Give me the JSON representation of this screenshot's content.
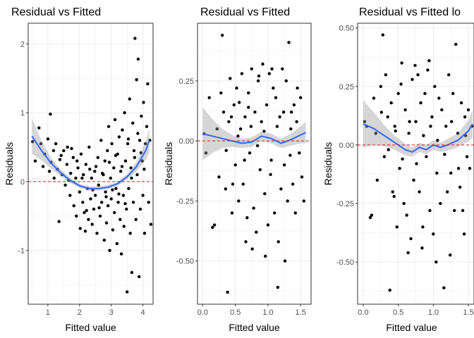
{
  "chart_data": [
    {
      "type": "scatter",
      "title": "Residual vs Fitted",
      "xlabel": "Fitted value",
      "ylabel": "Residuals",
      "xlim": [
        0.38,
        4.32
      ],
      "ylim": [
        -1.78,
        2.3
      ],
      "xticks": [
        1,
        2,
        3,
        4
      ],
      "yticks": [
        -1,
        0,
        1,
        2
      ],
      "grid": true,
      "reference_line": {
        "y": 0,
        "color": "#e41a1c",
        "style": "dashed"
      },
      "smooth": {
        "color": "#3366ff",
        "x": [
          0.5,
          0.8,
          1.1,
          1.4,
          1.7,
          2.0,
          2.3,
          2.6,
          2.9,
          3.2,
          3.5,
          3.8,
          4.1,
          4.2
        ],
        "y": [
          0.66,
          0.45,
          0.27,
          0.13,
          0.02,
          -0.06,
          -0.1,
          -0.1,
          -0.08,
          -0.03,
          0.07,
          0.22,
          0.46,
          0.6
        ],
        "band": [
          0.26,
          0.14,
          0.08,
          0.05,
          0.04,
          0.03,
          0.03,
          0.03,
          0.03,
          0.03,
          0.04,
          0.07,
          0.14,
          0.18
        ]
      },
      "points": [
        [
          0.52,
          0.58
        ],
        [
          0.6,
          0.3
        ],
        [
          0.72,
          0.78
        ],
        [
          0.78,
          0.55
        ],
        [
          0.85,
          0.22
        ],
        [
          0.9,
          0.4
        ],
        [
          1.0,
          0.62
        ],
        [
          1.05,
          0.15
        ],
        [
          1.08,
          0.98
        ],
        [
          1.1,
          0.28
        ],
        [
          1.18,
          0.45
        ],
        [
          1.2,
          0.05
        ],
        [
          1.25,
          0.55
        ],
        [
          1.3,
          0.18
        ],
        [
          1.35,
          -0.58
        ],
        [
          1.38,
          0.32
        ],
        [
          1.45,
          0.1
        ],
        [
          1.5,
          0.45
        ],
        [
          1.55,
          -0.05
        ],
        [
          1.6,
          0.25
        ],
        [
          1.62,
          0.5
        ],
        [
          1.7,
          -0.2
        ],
        [
          1.72,
          0.12
        ],
        [
          1.8,
          0.35
        ],
        [
          1.82,
          -0.35
        ],
        [
          1.88,
          0.05
        ],
        [
          1.9,
          -0.5
        ],
        [
          1.95,
          0.2
        ],
        [
          2.0,
          -0.15
        ],
        [
          2.02,
          -0.68
        ],
        [
          2.05,
          0.4
        ],
        [
          2.1,
          -0.3
        ],
        [
          2.12,
          0.1
        ],
        [
          2.15,
          -0.45
        ],
        [
          2.18,
          -0.72
        ],
        [
          2.2,
          0.25
        ],
        [
          2.25,
          -0.1
        ],
        [
          2.28,
          -0.55
        ],
        [
          2.3,
          0.5
        ],
        [
          2.35,
          -0.25
        ],
        [
          2.38,
          0.05
        ],
        [
          2.4,
          -0.62
        ],
        [
          2.45,
          -0.4
        ],
        [
          2.48,
          0.15
        ],
        [
          2.5,
          -0.2
        ],
        [
          2.55,
          -0.75
        ],
        [
          2.58,
          0.35
        ],
        [
          2.6,
          -0.05
        ],
        [
          2.65,
          -0.5
        ],
        [
          2.68,
          0.6
        ],
        [
          2.7,
          -0.3
        ],
        [
          2.75,
          0.1
        ],
        [
          2.78,
          -0.85
        ],
        [
          2.8,
          0.3
        ],
        [
          2.82,
          -0.15
        ],
        [
          2.85,
          -0.6
        ],
        [
          2.88,
          0.45
        ],
        [
          2.9,
          -0.35
        ],
        [
          2.92,
          0.8
        ],
        [
          2.95,
          -1.0
        ],
        [
          2.98,
          0.05
        ],
        [
          3.0,
          -0.25
        ],
        [
          3.02,
          0.55
        ],
        [
          3.05,
          -0.7
        ],
        [
          3.08,
          0.2
        ],
        [
          3.1,
          -0.45
        ],
        [
          3.12,
          0.9
        ],
        [
          3.15,
          -0.1
        ],
        [
          3.18,
          -0.9
        ],
        [
          3.2,
          0.4
        ],
        [
          3.22,
          -0.3
        ],
        [
          3.25,
          0.65
        ],
        [
          3.28,
          -0.55
        ],
        [
          3.3,
          0.15
        ],
        [
          3.32,
          -1.05
        ],
        [
          3.35,
          0.75
        ],
        [
          3.38,
          -0.2
        ],
        [
          3.4,
          -0.65
        ],
        [
          3.42,
          1.0
        ],
        [
          3.45,
          0.3
        ],
        [
          3.48,
          -0.4
        ],
        [
          3.5,
          -1.6
        ],
        [
          3.52,
          0.55
        ],
        [
          3.55,
          -0.1
        ],
        [
          3.58,
          1.2
        ],
        [
          3.6,
          -0.75
        ],
        [
          3.62,
          0.2
        ],
        [
          3.65,
          -1.32
        ],
        [
          3.68,
          0.85
        ],
        [
          3.7,
          -0.3
        ],
        [
          3.72,
          0.45
        ],
        [
          3.75,
          2.08
        ],
        [
          3.78,
          -0.55
        ],
        [
          3.8,
          1.48
        ],
        [
          3.82,
          0.1
        ],
        [
          3.85,
          1.78
        ],
        [
          3.88,
          -1.38
        ],
        [
          3.9,
          0.6
        ],
        [
          3.92,
          -0.4
        ],
        [
          3.95,
          0.95
        ],
        [
          3.98,
          0.3
        ],
        [
          4.0,
          -0.2
        ],
        [
          4.02,
          1.15
        ],
        [
          4.05,
          -0.75
        ],
        [
          4.08,
          0.55
        ],
        [
          4.12,
          0.8
        ],
        [
          4.15,
          1.42
        ],
        [
          4.18,
          -0.3
        ],
        [
          4.22,
          0.6
        ],
        [
          4.25,
          -0.62
        ],
        [
          1.42,
          0.38
        ],
        [
          1.65,
          0.02
        ],
        [
          1.75,
          0.48
        ],
        [
          1.92,
          0.3
        ],
        [
          2.08,
          0.05
        ],
        [
          2.22,
          -0.42
        ],
        [
          2.32,
          0.18
        ],
        [
          2.42,
          -0.12
        ],
        [
          2.52,
          0.22
        ],
        [
          2.62,
          -0.38
        ],
        [
          2.72,
          0.12
        ],
        [
          2.84,
          -0.22
        ],
        [
          2.94,
          0.28
        ],
        [
          3.04,
          -0.12
        ],
        [
          3.14,
          0.38
        ],
        [
          3.24,
          -0.18
        ],
        [
          3.34,
          0.22
        ],
        [
          3.44,
          -0.32
        ],
        [
          3.54,
          0.62
        ],
        [
          3.64,
          0.05
        ],
        [
          3.74,
          0.35
        ],
        [
          3.84,
          0.7
        ],
        [
          3.94,
          0.42
        ],
        [
          4.04,
          0.18
        ]
      ]
    },
    {
      "type": "scatter",
      "title": "Residual vs Fitted",
      "xlabel": "Fitted value",
      "ylabel": "Residuals",
      "xlim": [
        -0.08,
        1.66
      ],
      "ylim": [
        -0.68,
        0.49
      ],
      "xticks": [
        0.0,
        0.5,
        1.0,
        1.5
      ],
      "xtick_labels": [
        "0.0",
        "0.5",
        "1.0",
        "1.5"
      ],
      "yticks": [
        -0.5,
        -0.25,
        0.0,
        0.25
      ],
      "ytick_labels": [
        "-0.50",
        "-0.25",
        "0.00",
        "0.25"
      ],
      "grid": true,
      "reference_line": {
        "y": 0,
        "color": "#e41a1c",
        "style": "dashed"
      },
      "smooth": {
        "color": "#3366ff",
        "x": [
          0.0,
          0.15,
          0.3,
          0.45,
          0.6,
          0.75,
          0.9,
          1.05,
          1.2,
          1.35,
          1.5,
          1.58
        ],
        "y": [
          0.03,
          0.02,
          0.01,
          0.0,
          -0.01,
          -0.005,
          0.02,
          0.01,
          -0.01,
          0.005,
          0.025,
          0.035
        ],
        "band": [
          0.11,
          0.07,
          0.04,
          0.025,
          0.02,
          0.02,
          0.02,
          0.02,
          0.02,
          0.025,
          0.035,
          0.045
        ]
      },
      "points": [
        [
          0.02,
          0.03
        ],
        [
          0.05,
          -0.05
        ],
        [
          0.1,
          0.18
        ],
        [
          0.15,
          -0.36
        ],
        [
          0.18,
          -0.35
        ],
        [
          0.22,
          0.05
        ],
        [
          0.25,
          -0.15
        ],
        [
          0.3,
          0.44
        ],
        [
          0.32,
          0.12
        ],
        [
          0.35,
          -0.2
        ],
        [
          0.38,
          -0.63
        ],
        [
          0.4,
          0.08
        ],
        [
          0.42,
          0.26
        ],
        [
          0.45,
          -0.3
        ],
        [
          0.48,
          0.15
        ],
        [
          0.5,
          -0.1
        ],
        [
          0.52,
          0.22
        ],
        [
          0.55,
          -0.25
        ],
        [
          0.58,
          0.05
        ],
        [
          0.6,
          0.28
        ],
        [
          0.62,
          -0.18
        ],
        [
          0.65,
          0.1
        ],
        [
          0.68,
          -0.32
        ],
        [
          0.7,
          0.2
        ],
        [
          0.72,
          -0.05
        ],
        [
          0.75,
          0.3
        ],
        [
          0.78,
          -0.28
        ],
        [
          0.8,
          0.12
        ],
        [
          0.82,
          -0.38
        ],
        [
          0.85,
          0.25
        ],
        [
          0.88,
          -0.12
        ],
        [
          0.9,
          0.08
        ],
        [
          0.92,
          0.32
        ],
        [
          0.95,
          -0.22
        ],
        [
          0.98,
          0.15
        ],
        [
          1.0,
          -0.35
        ],
        [
          1.02,
          0.28
        ],
        [
          1.05,
          -0.08
        ],
        [
          1.08,
          0.22
        ],
        [
          1.1,
          -0.3
        ],
        [
          1.12,
          0.18
        ],
        [
          1.15,
          -0.61
        ],
        [
          1.18,
          0.1
        ],
        [
          1.2,
          -0.2
        ],
        [
          1.22,
          0.3
        ],
        [
          1.25,
          -0.1
        ],
        [
          1.28,
          0.25
        ],
        [
          1.3,
          -0.25
        ],
        [
          1.32,
          0.41
        ],
        [
          1.35,
          0.05
        ],
        [
          1.38,
          -0.18
        ],
        [
          1.4,
          0.15
        ],
        [
          1.42,
          -0.3
        ],
        [
          1.45,
          0.22
        ],
        [
          1.48,
          -0.05
        ],
        [
          1.5,
          0.18
        ],
        [
          1.52,
          -0.15
        ],
        [
          1.55,
          -0.25
        ],
        [
          0.28,
          0.2
        ],
        [
          0.36,
          -0.04
        ],
        [
          0.44,
          0.1
        ],
        [
          0.54,
          0.02
        ],
        [
          0.64,
          -0.08
        ],
        [
          0.74,
          0.06
        ],
        [
          0.84,
          -0.02
        ],
        [
          0.94,
          0.04
        ],
        [
          1.04,
          -0.14
        ],
        [
          1.14,
          0.06
        ],
        [
          1.24,
          0.12
        ],
        [
          1.34,
          -0.06
        ],
        [
          1.44,
          0.08
        ],
        [
          0.66,
          -0.42
        ],
        [
          0.76,
          -0.45
        ],
        [
          0.86,
          0.27
        ],
        [
          0.96,
          -0.48
        ],
        [
          1.06,
          0.3
        ],
        [
          1.16,
          -0.42
        ],
        [
          1.26,
          -0.5
        ],
        [
          1.36,
          0.12
        ],
        [
          0.56,
          0.16
        ],
        [
          0.46,
          -0.18
        ],
        [
          0.7,
          0.14
        ]
      ]
    },
    {
      "type": "scatter",
      "title": "Residual vs Fitted lo",
      "xlabel": "Fitted value",
      "ylabel": "Residuals",
      "xlim": [
        -0.08,
        1.58
      ],
      "ylim": [
        -0.68,
        0.52
      ],
      "xticks": [
        0.0,
        0.5,
        1.0,
        1.5
      ],
      "xtick_labels": [
        "0.0",
        "0.5",
        "1.0",
        "1.5"
      ],
      "yticks": [
        -0.5,
        -0.25,
        0.0,
        0.25,
        0.5
      ],
      "ytick_labels": [
        "-0.50",
        "-0.25",
        "0.00",
        "0.25",
        "0.50"
      ],
      "grid": true,
      "reference_line": {
        "y": 0,
        "color": "#e41a1c",
        "style": "dashed"
      },
      "smooth": {
        "color": "#3366ff",
        "x": [
          0.0,
          0.15,
          0.3,
          0.45,
          0.6,
          0.7,
          0.8,
          0.9,
          1.0,
          1.1,
          1.2,
          1.35,
          1.5,
          1.56
        ],
        "y": [
          0.09,
          0.07,
          0.04,
          0.01,
          -0.02,
          -0.03,
          -0.01,
          -0.02,
          0.0,
          -0.01,
          0.0,
          0.02,
          0.06,
          0.09
        ],
        "band": [
          0.1,
          0.07,
          0.045,
          0.03,
          0.025,
          0.02,
          0.02,
          0.02,
          0.02,
          0.02,
          0.025,
          0.03,
          0.045,
          0.06
        ]
      },
      "points": [
        [
          0.02,
          0.1
        ],
        [
          0.05,
          0.08
        ],
        [
          0.1,
          -0.31
        ],
        [
          0.12,
          -0.3
        ],
        [
          0.15,
          0.2
        ],
        [
          0.18,
          0.05
        ],
        [
          0.2,
          -0.15
        ],
        [
          0.25,
          0.25
        ],
        [
          0.28,
          0.47
        ],
        [
          0.3,
          -0.05
        ],
        [
          0.32,
          0.3
        ],
        [
          0.35,
          0.12
        ],
        [
          0.38,
          -0.62
        ],
        [
          0.4,
          0.18
        ],
        [
          0.42,
          -0.2
        ],
        [
          0.45,
          0.08
        ],
        [
          0.48,
          -0.35
        ],
        [
          0.5,
          0.22
        ],
        [
          0.52,
          -0.1
        ],
        [
          0.55,
          0.35
        ],
        [
          0.58,
          -0.25
        ],
        [
          0.6,
          0.15
        ],
        [
          0.62,
          -0.3
        ],
        [
          0.65,
          0.05
        ],
        [
          0.68,
          -0.4
        ],
        [
          0.7,
          0.28
        ],
        [
          0.72,
          -0.15
        ],
        [
          0.75,
          0.1
        ],
        [
          0.78,
          0.3
        ],
        [
          0.8,
          -0.2
        ],
        [
          0.82,
          0.18
        ],
        [
          0.85,
          -0.35
        ],
        [
          0.88,
          0.22
        ],
        [
          0.9,
          -0.05
        ],
        [
          0.92,
          0.32
        ],
        [
          0.95,
          -0.28
        ],
        [
          0.98,
          0.12
        ],
        [
          1.0,
          -0.38
        ],
        [
          1.02,
          0.25
        ],
        [
          1.05,
          -0.12
        ],
        [
          1.08,
          0.2
        ],
        [
          1.1,
          -0.25
        ],
        [
          1.12,
          0.15
        ],
        [
          1.15,
          -0.61
        ],
        [
          1.18,
          0.08
        ],
        [
          1.2,
          -0.2
        ],
        [
          1.22,
          0.3
        ],
        [
          1.25,
          -0.12
        ],
        [
          1.28,
          0.22
        ],
        [
          1.3,
          -0.28
        ],
        [
          1.32,
          0.43
        ],
        [
          1.35,
          0.05
        ],
        [
          1.38,
          -0.18
        ],
        [
          1.4,
          0.18
        ],
        [
          1.42,
          -0.28
        ],
        [
          1.45,
          0.12
        ],
        [
          1.48,
          -0.05
        ],
        [
          1.5,
          0.15
        ],
        [
          1.52,
          -0.1
        ],
        [
          1.55,
          0.08
        ],
        [
          0.26,
          0.14
        ],
        [
          0.36,
          -0.02
        ],
        [
          0.46,
          0.06
        ],
        [
          0.56,
          -0.06
        ],
        [
          0.66,
          0.1
        ],
        [
          0.76,
          -0.08
        ],
        [
          0.86,
          0.04
        ],
        [
          0.96,
          0.08
        ],
        [
          1.06,
          0.02
        ],
        [
          1.16,
          -0.04
        ],
        [
          1.26,
          0.1
        ],
        [
          1.36,
          -0.1
        ],
        [
          1.46,
          0.04
        ],
        [
          0.64,
          -0.46
        ],
        [
          0.74,
          0.34
        ],
        [
          0.84,
          -0.44
        ],
        [
          0.94,
          0.36
        ],
        [
          1.04,
          -0.5
        ],
        [
          1.24,
          -0.47
        ],
        [
          1.44,
          -0.38
        ],
        [
          0.54,
          0.26
        ],
        [
          0.44,
          -0.22
        ]
      ]
    }
  ]
}
